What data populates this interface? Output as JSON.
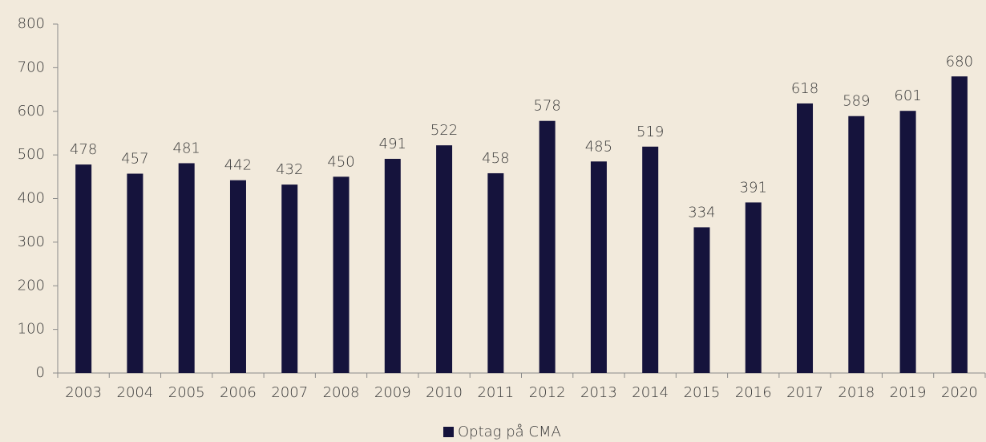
{
  "chart_data": {
    "type": "bar",
    "categories": [
      "2003",
      "2004",
      "2005",
      "2006",
      "2007",
      "2008",
      "2009",
      "2010",
      "2011",
      "2012",
      "2013",
      "2014",
      "2015",
      "2016",
      "2017",
      "2018",
      "2019",
      "2020"
    ],
    "series": [
      {
        "name": "Optag på CMA",
        "color": "#15133c",
        "values": [
          478,
          457,
          481,
          442,
          432,
          450,
          491,
          522,
          458,
          578,
          485,
          519,
          334,
          391,
          618,
          589,
          601,
          680
        ]
      }
    ],
    "ylim": [
      0,
      800
    ],
    "yticks": [
      0,
      100,
      200,
      300,
      400,
      500,
      600,
      700,
      800
    ],
    "legend": "bottom"
  }
}
